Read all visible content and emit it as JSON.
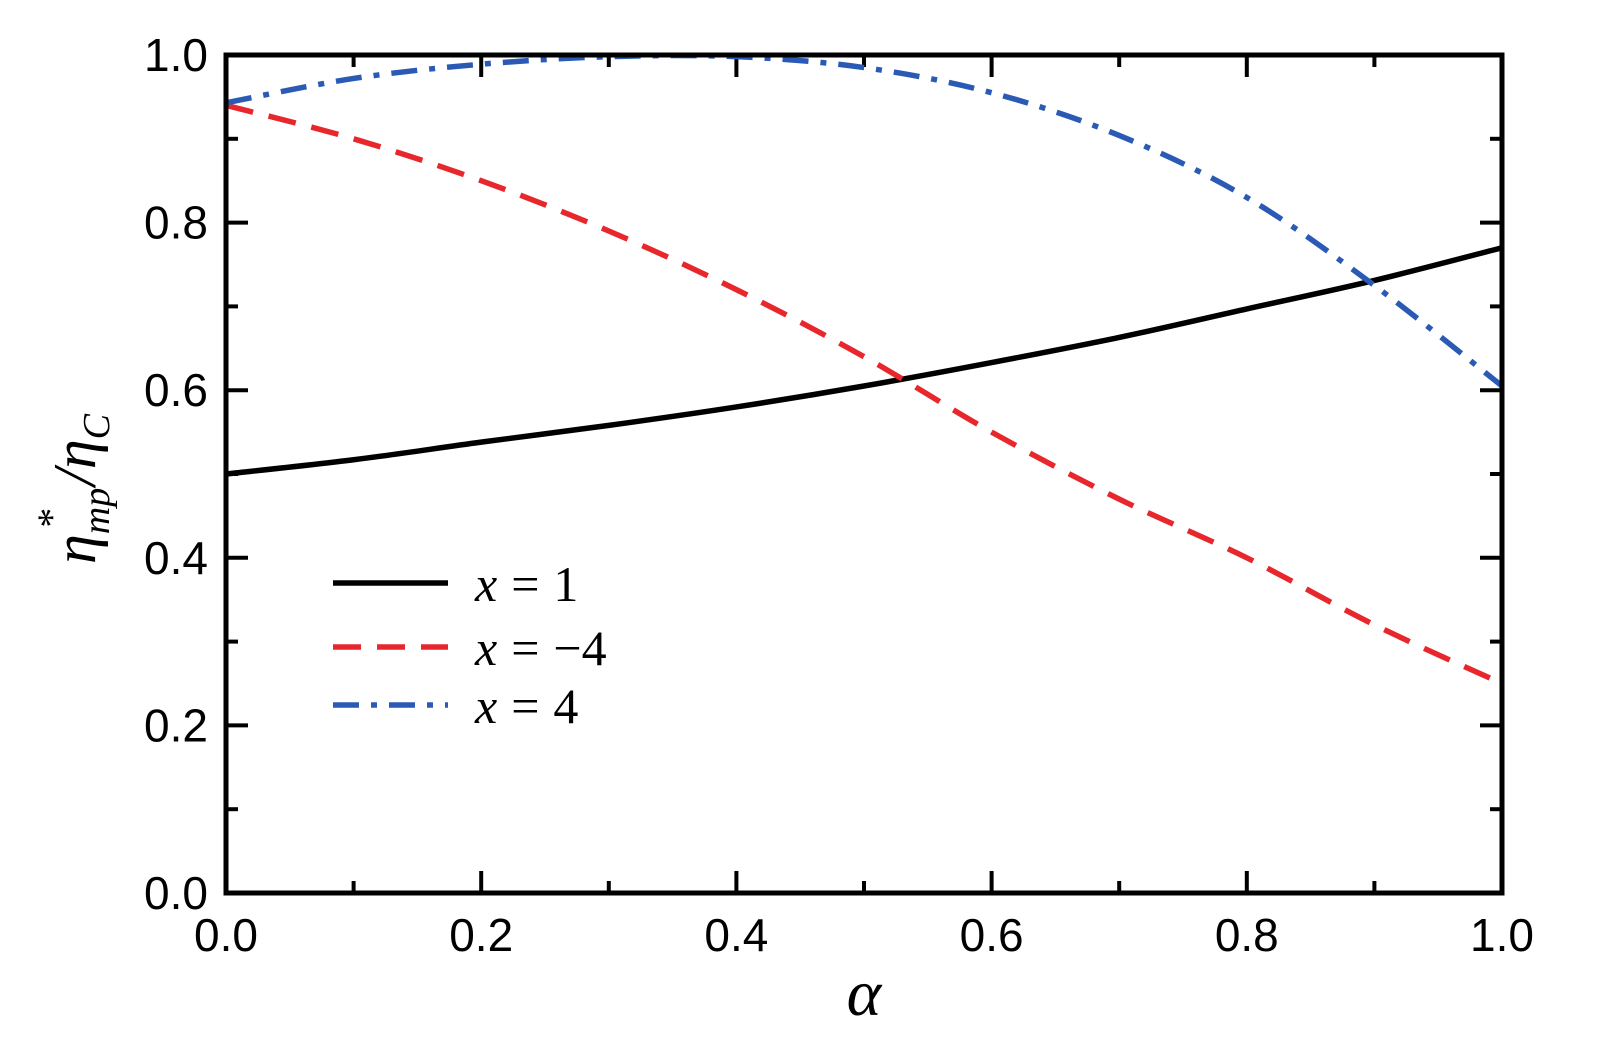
{
  "chart_data": {
    "type": "line",
    "xlabel": "α",
    "ylabel": {
      "eta": "η",
      "star": "*",
      "sub": "mp",
      "slash": "/",
      "eta2": "η",
      "sub2": "C"
    },
    "xlim": [
      0.0,
      1.0
    ],
    "ylim": [
      0.0,
      1.0
    ],
    "x_ticks": [
      "0.0",
      "0.2",
      "0.4",
      "0.6",
      "0.8",
      "1.0"
    ],
    "y_ticks": [
      "0.0",
      "0.2",
      "0.4",
      "0.6",
      "0.8",
      "1.0"
    ],
    "grid": false,
    "legend_position": "lower-left",
    "x": [
      0.0,
      0.1,
      0.2,
      0.3,
      0.4,
      0.5,
      0.6,
      0.7,
      0.8,
      0.9,
      1.0
    ],
    "series": [
      {
        "name": "x = 1",
        "legend": {
          "var": "x",
          "eq": "=",
          "val": "1"
        },
        "color": "#000000",
        "style": "solid",
        "values": [
          0.5,
          0.517,
          0.538,
          0.558,
          0.58,
          0.605,
          0.633,
          0.663,
          0.697,
          0.731,
          0.77
        ]
      },
      {
        "name": "x = −4",
        "legend": {
          "var": "x",
          "eq": "=",
          "val": "−4"
        },
        "color": "#e8272d",
        "style": "dashed",
        "values": [
          0.94,
          0.9,
          0.85,
          0.79,
          0.72,
          0.64,
          0.55,
          0.47,
          0.4,
          0.32,
          0.25
        ]
      },
      {
        "name": "x = 4",
        "legend": {
          "var": "x",
          "eq": "=",
          "val": "4"
        },
        "color": "#2b5ab5",
        "style": "dashdot",
        "values": [
          0.943,
          0.972,
          0.989,
          0.998,
          0.998,
          0.985,
          0.955,
          0.904,
          0.83,
          0.725,
          0.605
        ]
      }
    ]
  }
}
